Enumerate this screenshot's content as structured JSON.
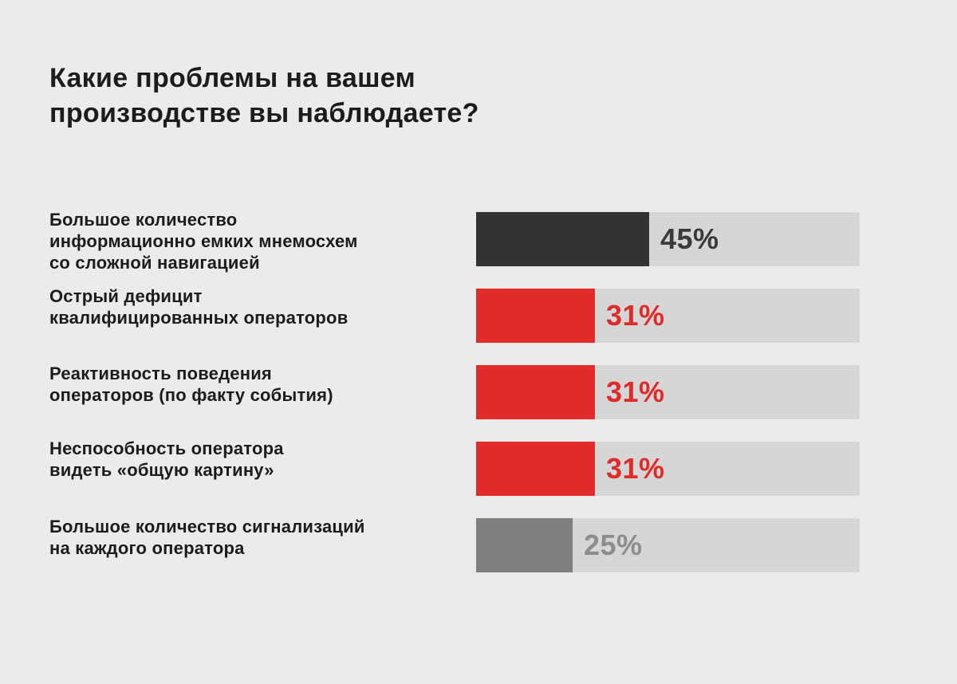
{
  "chart_data": {
    "type": "bar",
    "title": "Какие проблемы на вашем производстве вы наблюдаете?",
    "title_lines": [
      "Какие проблемы на вашем",
      "производстве вы наблюдаете?"
    ],
    "orientation": "horizontal",
    "xlim": [
      0,
      100
    ],
    "grid": false,
    "categories": [
      "Большое количество информационно емких мнемосхем со сложной навигацией",
      "Острый дефицит квалифицированных операторов",
      "Реактивность поведения операторов (по факту события)",
      "Неспособность оператора видеть «общую картину»",
      "Большое количество сигнализаций на каждого оператора"
    ],
    "values": [
      45,
      31,
      31,
      31,
      25
    ],
    "items": [
      {
        "label_lines": [
          "Большое количество",
          "информационно емких мнемосхем",
          "со сложной навигацией"
        ],
        "value": 45,
        "value_label": "45%",
        "bar_color": "#333333",
        "text_color": "#3a3a3a"
      },
      {
        "label_lines": [
          "Острый дефицит",
          "квалифицированных операторов"
        ],
        "value": 31,
        "value_label": "31%",
        "bar_color": "#e12a2a",
        "text_color": "#e12a2a"
      },
      {
        "label_lines": [
          "Реактивность поведения",
          "операторов (по факту события)"
        ],
        "value": 31,
        "value_label": "31%",
        "bar_color": "#e12a2a",
        "text_color": "#e12a2a"
      },
      {
        "label_lines": [
          "Неспособность оператора",
          "видеть «общую картину»"
        ],
        "value": 31,
        "value_label": "31%",
        "bar_color": "#e12a2a",
        "text_color": "#e12a2a"
      },
      {
        "label_lines": [
          "Большое количество сигнализаций",
          "на каждого оператора"
        ],
        "value": 25,
        "value_label": "25%",
        "bar_color": "#7e7e7e",
        "text_color": "#8d8d8d"
      }
    ],
    "track_color": "#d6d6d6",
    "background_color": "#ebebeb"
  }
}
